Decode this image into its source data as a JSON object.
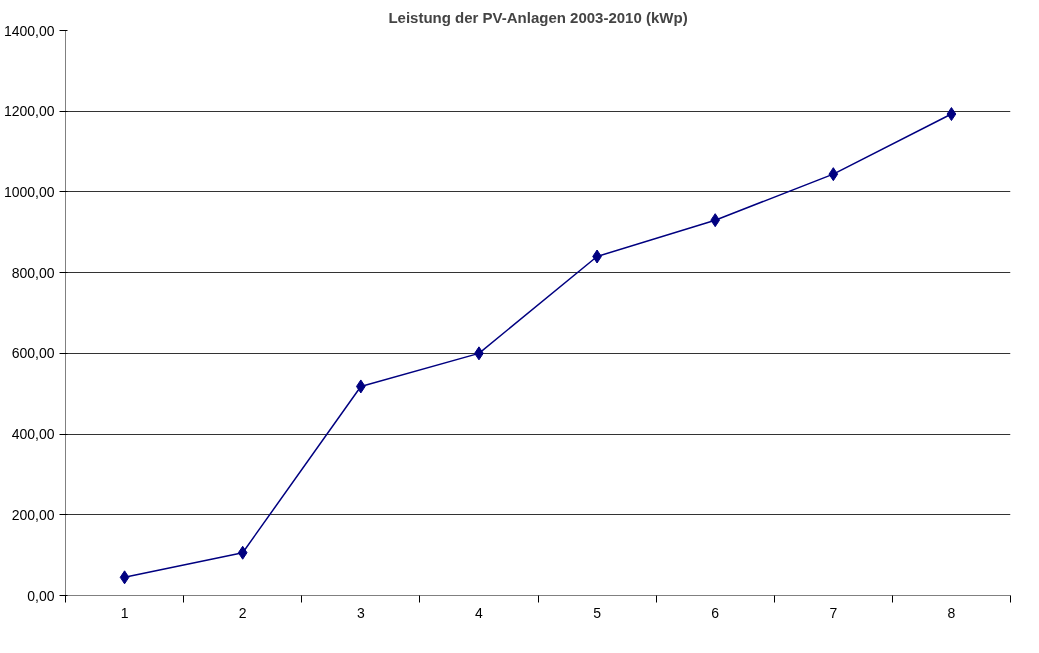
{
  "chart_data": {
    "type": "line",
    "title": "Leistung der PV-Anlagen 2003-2010 (kWp)",
    "categories": [
      "1",
      "2",
      "3",
      "4",
      "5",
      "6",
      "7",
      "8"
    ],
    "series": [
      {
        "color": "#000080",
        "values": [
          45,
          106,
          518,
          600,
          840,
          930,
          1044,
          1193
        ]
      }
    ],
    "ylim": [
      0,
      1400
    ],
    "yticks": [
      {
        "value": 0,
        "label": "0,00"
      },
      {
        "value": 200,
        "label": "200,00"
      },
      {
        "value": 400,
        "label": "400,00"
      },
      {
        "value": 600,
        "label": "600,00"
      },
      {
        "value": 800,
        "label": "800,00"
      },
      {
        "value": 1000,
        "label": "1000,00"
      },
      {
        "value": 1200,
        "label": "1200,00"
      },
      {
        "value": 1400,
        "label": "1400,00"
      }
    ],
    "grid": "y",
    "marker": "diamond",
    "line_style": "solid"
  }
}
